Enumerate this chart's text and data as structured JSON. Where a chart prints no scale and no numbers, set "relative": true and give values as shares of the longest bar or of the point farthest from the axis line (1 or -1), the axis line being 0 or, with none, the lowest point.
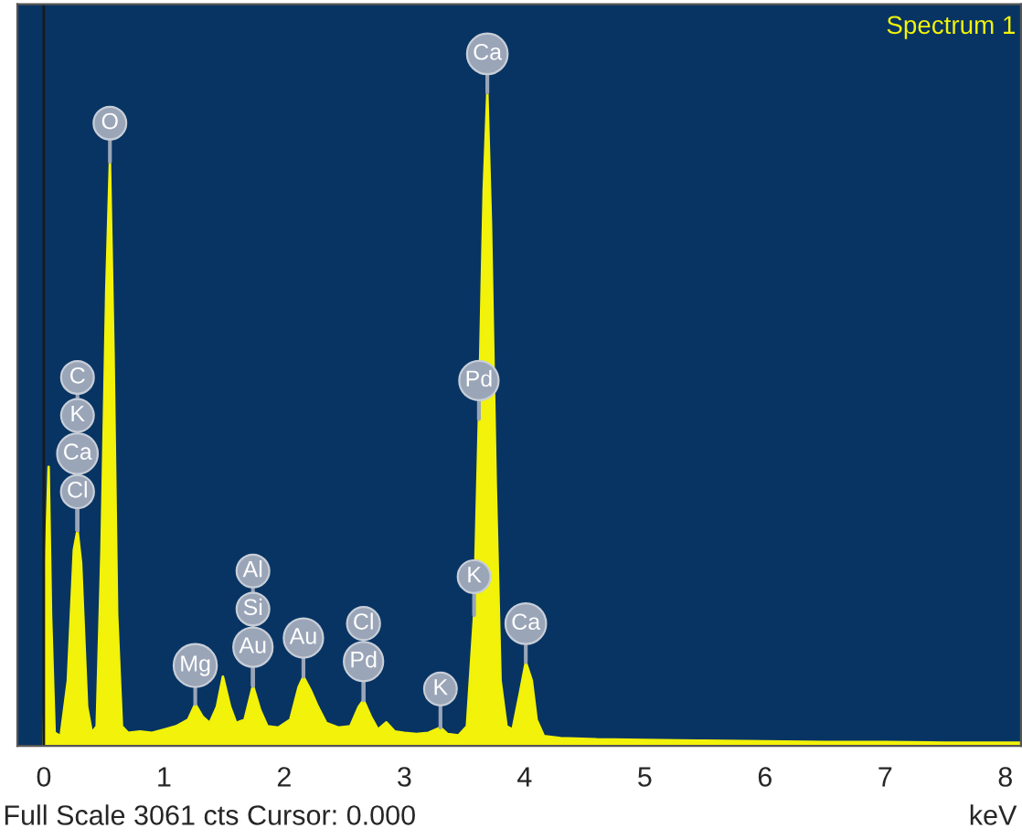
{
  "chart_data": {
    "type": "area",
    "title": "Spectrum 1",
    "xlabel": "keV",
    "relative": true,
    "xlim": [
      -0.22,
      8.13
    ],
    "xticks": [
      0,
      1,
      2,
      3,
      4,
      5,
      6,
      7,
      8
    ],
    "grid": false,
    "legend": false,
    "x": [
      0.0,
      0.02,
      0.04,
      0.06,
      0.09,
      0.14,
      0.2,
      0.25,
      0.28,
      0.31,
      0.36,
      0.4,
      0.44,
      0.48,
      0.52,
      0.55,
      0.58,
      0.61,
      0.65,
      0.7,
      0.8,
      0.9,
      1.0,
      1.1,
      1.2,
      1.26,
      1.32,
      1.38,
      1.44,
      1.49,
      1.55,
      1.6,
      1.67,
      1.74,
      1.8,
      1.86,
      1.95,
      2.05,
      2.12,
      2.16,
      2.22,
      2.28,
      2.35,
      2.45,
      2.55,
      2.62,
      2.66,
      2.72,
      2.78,
      2.85,
      2.92,
      3.0,
      3.1,
      3.2,
      3.3,
      3.36,
      3.45,
      3.52,
      3.58,
      3.62,
      3.66,
      3.69,
      3.72,
      3.76,
      3.8,
      3.85,
      3.9,
      3.96,
      4.01,
      4.06,
      4.1,
      4.16,
      4.3,
      4.6,
      5.0,
      5.5,
      6.0,
      6.5,
      7.0,
      7.5,
      8.0,
      8.13
    ],
    "series": [
      {
        "color": "#f2f20a",
        "values": [
          0.0,
          0.3,
          0.427,
          0.2,
          0.02,
          0.015,
          0.1,
          0.3,
          0.33,
          0.28,
          0.06,
          0.02,
          0.03,
          0.3,
          0.7,
          0.894,
          0.6,
          0.2,
          0.03,
          0.02,
          0.022,
          0.02,
          0.025,
          0.03,
          0.04,
          0.064,
          0.045,
          0.035,
          0.06,
          0.106,
          0.06,
          0.035,
          0.04,
          0.092,
          0.055,
          0.03,
          0.028,
          0.04,
          0.09,
          0.106,
          0.085,
          0.06,
          0.035,
          0.028,
          0.03,
          0.06,
          0.07,
          0.045,
          0.025,
          0.036,
          0.022,
          0.02,
          0.018,
          0.02,
          0.028,
          0.018,
          0.016,
          0.03,
          0.2,
          0.5,
          0.85,
          1.0,
          0.8,
          0.4,
          0.1,
          0.03,
          0.025,
          0.08,
          0.128,
          0.1,
          0.04,
          0.015,
          0.012,
          0.01,
          0.009,
          0.008,
          0.007,
          0.006,
          0.006,
          0.005,
          0.005,
          0.005
        ]
      }
    ],
    "ref_lines": [
      {
        "axis": "x",
        "value": 0,
        "color": "#1a1a1a"
      }
    ],
    "annotations": [
      {
        "text": "Ca",
        "x": 3.69,
        "y": 1.0
      },
      {
        "text": "O",
        "x": 0.55,
        "y": 0.894
      },
      {
        "text": "Cl",
        "x": 0.28,
        "y": 0.33
      },
      {
        "text": "Ca",
        "x": 0.28,
        "y": 0.33
      },
      {
        "text": "K",
        "x": 0.28,
        "y": 0.33
      },
      {
        "text": "C",
        "x": 0.28,
        "y": 0.33
      },
      {
        "text": "Au",
        "x": 1.74,
        "y": 0.092
      },
      {
        "text": "Si",
        "x": 1.74,
        "y": 0.092
      },
      {
        "text": "Al",
        "x": 1.74,
        "y": 0.092
      },
      {
        "text": "Au",
        "x": 2.16,
        "y": 0.106
      },
      {
        "text": "Pd",
        "x": 2.66,
        "y": 0.07
      },
      {
        "text": "Cl",
        "x": 2.66,
        "y": 0.07
      },
      {
        "text": "Mg",
        "x": 1.26,
        "y": 0.064
      },
      {
        "text": "K",
        "x": 3.3,
        "y": 0.028
      },
      {
        "text": "Pd",
        "x": 3.62,
        "y": 0.5
      },
      {
        "text": "K",
        "x": 3.58,
        "y": 0.2
      },
      {
        "text": "Ca",
        "x": 4.01,
        "y": 0.128
      },
      "Full Scale 3061 cts Cursor: 0.000"
    ]
  }
}
